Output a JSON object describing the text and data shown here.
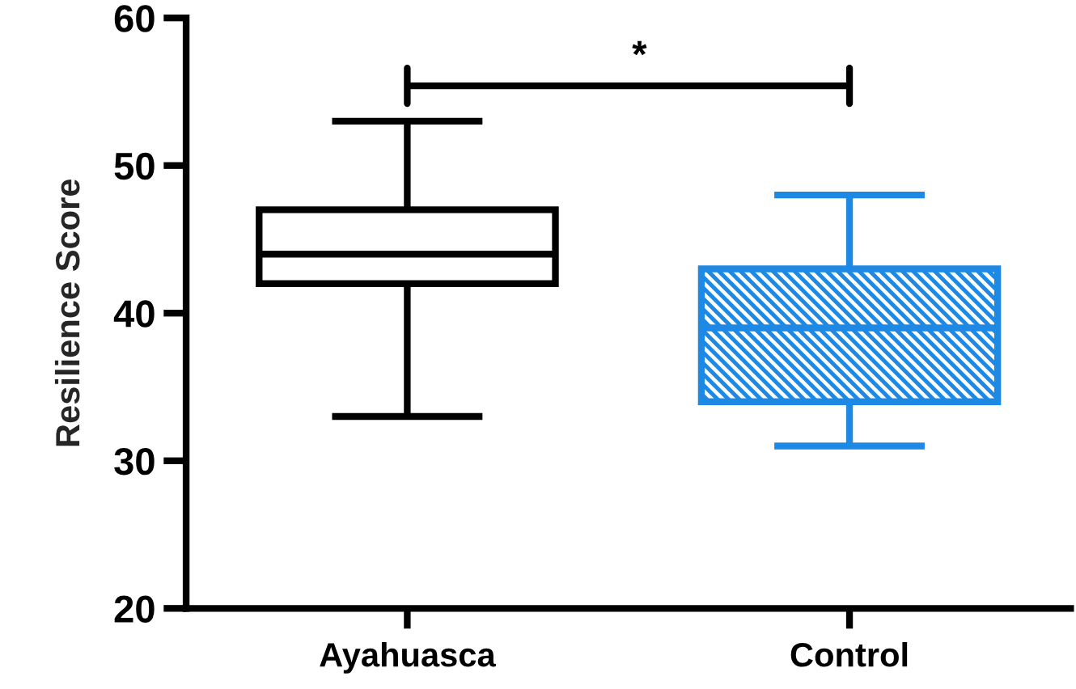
{
  "chart_data": {
    "type": "box",
    "ylabel": "Resilience Score",
    "categories": [
      "Ayahuasca",
      "Control"
    ],
    "boxes": [
      {
        "low": 33,
        "q1": 42,
        "median": 44,
        "q3": 47,
        "high": 53
      },
      {
        "low": 31,
        "q1": 34,
        "median": 39,
        "q3": 43,
        "high": 48
      }
    ],
    "colors": [
      "#000000",
      "#1e88e5"
    ],
    "ylim": [
      20,
      60
    ],
    "yticks": [
      20,
      30,
      40,
      50,
      60
    ],
    "annotations": [
      "*"
    ]
  }
}
